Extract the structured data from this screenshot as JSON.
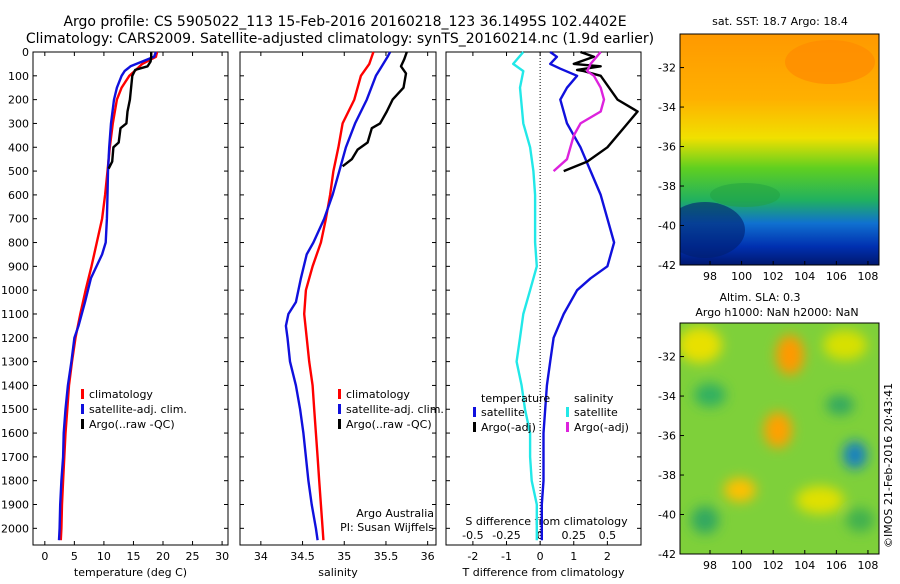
{
  "header": {
    "line1": "Argo profile: CS 5905022_113 15-Feb-2016 20160218_123 36.1495S 102.4402E",
    "line2": "Climatology: CARS2009. Satellite-adjusted climatology: synTS_20160214.nc (1.9d earlier)"
  },
  "colors": {
    "climatology": "#ff0000",
    "satellite": "#1010dd",
    "argo": "#000000",
    "satellite_salinity": "#22e8e8",
    "argo_salinity": "#dd22dd"
  },
  "watermark": "©IMOS 21-Feb-2016 20:43:41",
  "chart_data": [
    {
      "id": "temperature",
      "type": "line",
      "xlabel": "temperature (deg C)",
      "xlim": [
        -2,
        31
      ],
      "xticks": [
        0,
        5,
        10,
        15,
        20,
        25,
        30
      ],
      "ylim": [
        2070,
        0
      ],
      "yticks": [
        0,
        100,
        200,
        300,
        400,
        500,
        600,
        700,
        800,
        900,
        1000,
        1100,
        1200,
        1300,
        1400,
        1500,
        1600,
        1700,
        1800,
        1900,
        2000
      ],
      "legend": [
        "climatology",
        "satellite-adj. clim.",
        "Argo(..raw -QC)"
      ],
      "series": [
        {
          "name": "climatology",
          "color": "#ff0000",
          "points": [
            [
              19,
              0
            ],
            [
              18.8,
              20
            ],
            [
              16.5,
              50
            ],
            [
              15.2,
              80
            ],
            [
              14.3,
              100
            ],
            [
              13,
              150
            ],
            [
              12.2,
              200
            ],
            [
              11.5,
              300
            ],
            [
              11,
              400
            ],
            [
              10.6,
              500
            ],
            [
              10.2,
              600
            ],
            [
              9.7,
              700
            ],
            [
              8.8,
              800
            ],
            [
              7.9,
              900
            ],
            [
              6.9,
              1000
            ],
            [
              6,
              1100
            ],
            [
              5.2,
              1200
            ],
            [
              4.6,
              1300
            ],
            [
              4.1,
              1400
            ],
            [
              3.8,
              1500
            ],
            [
              3.5,
              1600
            ],
            [
              3.3,
              1700
            ],
            [
              3.1,
              1800
            ],
            [
              2.9,
              1900
            ],
            [
              2.8,
              2000
            ],
            [
              2.7,
              2050
            ]
          ]
        },
        {
          "name": "satellite-adj. clim.",
          "color": "#1010dd",
          "points": [
            [
              18.8,
              0
            ],
            [
              18.5,
              20
            ],
            [
              14.5,
              60
            ],
            [
              13.5,
              80
            ],
            [
              13,
              100
            ],
            [
              12.2,
              150
            ],
            [
              11.7,
              200
            ],
            [
              11.2,
              300
            ],
            [
              10.9,
              400
            ],
            [
              10.7,
              500
            ],
            [
              10.6,
              600
            ],
            [
              10.5,
              700
            ],
            [
              10.3,
              800
            ],
            [
              9.7,
              850
            ],
            [
              7.8,
              950
            ],
            [
              6.8,
              1050
            ],
            [
              5.7,
              1150
            ],
            [
              5,
              1200
            ],
            [
              4.5,
              1300
            ],
            [
              3.9,
              1400
            ],
            [
              3.5,
              1500
            ],
            [
              3.2,
              1600
            ],
            [
              3.1,
              1700
            ],
            [
              2.8,
              1800
            ],
            [
              2.6,
              1900
            ],
            [
              2.5,
              2000
            ],
            [
              2.4,
              2050
            ]
          ]
        },
        {
          "name": "Argo(..raw -QC)",
          "color": "#000000",
          "points": [
            [
              18,
              0
            ],
            [
              18,
              20
            ],
            [
              17.9,
              40
            ],
            [
              17.4,
              60
            ],
            [
              15.3,
              75
            ],
            [
              14.8,
              100
            ],
            [
              14.4,
              200
            ],
            [
              14,
              250
            ],
            [
              13.8,
              300
            ],
            [
              12.8,
              320
            ],
            [
              12.5,
              380
            ],
            [
              11.6,
              400
            ],
            [
              11.4,
              460
            ],
            [
              10.8,
              490
            ]
          ]
        }
      ]
    },
    {
      "id": "salinity",
      "type": "line",
      "xlabel": "salinity",
      "xlim": [
        33.75,
        36.1
      ],
      "xticks": [
        34,
        34.5,
        35,
        35.5,
        36
      ],
      "ylim": [
        2070,
        0
      ],
      "legend": [
        "climatology",
        "satellite-adj. clim.",
        "Argo(..raw -QC)"
      ],
      "annotations": [
        "Argo Australia",
        "PI: Susan Wijffels"
      ],
      "series": [
        {
          "name": "climatology",
          "color": "#ff0000",
          "points": [
            [
              35.35,
              0
            ],
            [
              35.3,
              50
            ],
            [
              35.2,
              100
            ],
            [
              35.12,
              200
            ],
            [
              34.98,
              300
            ],
            [
              34.93,
              400
            ],
            [
              34.87,
              500
            ],
            [
              34.83,
              600
            ],
            [
              34.78,
              700
            ],
            [
              34.72,
              800
            ],
            [
              34.62,
              900
            ],
            [
              34.54,
              1000
            ],
            [
              34.52,
              1100
            ],
            [
              34.55,
              1200
            ],
            [
              34.58,
              1300
            ],
            [
              34.62,
              1400
            ],
            [
              34.64,
              1500
            ],
            [
              34.66,
              1600
            ],
            [
              34.68,
              1700
            ],
            [
              34.7,
              1800
            ],
            [
              34.72,
              1900
            ],
            [
              34.74,
              2000
            ],
            [
              34.75,
              2050
            ]
          ]
        },
        {
          "name": "satellite-adj. clim.",
          "color": "#1010dd",
          "points": [
            [
              35.55,
              0
            ],
            [
              35.52,
              20
            ],
            [
              35.45,
              60
            ],
            [
              35.38,
              100
            ],
            [
              35.27,
              200
            ],
            [
              35.13,
              300
            ],
            [
              35.02,
              400
            ],
            [
              34.94,
              500
            ],
            [
              34.86,
              600
            ],
            [
              34.76,
              700
            ],
            [
              34.63,
              800
            ],
            [
              34.55,
              850
            ],
            [
              34.48,
              950
            ],
            [
              34.42,
              1050
            ],
            [
              34.33,
              1100
            ],
            [
              34.3,
              1150
            ],
            [
              34.32,
              1200
            ],
            [
              34.35,
              1300
            ],
            [
              34.42,
              1400
            ],
            [
              34.47,
              1500
            ],
            [
              34.51,
              1600
            ],
            [
              34.54,
              1700
            ],
            [
              34.57,
              1800
            ],
            [
              34.61,
              1900
            ],
            [
              34.66,
              2000
            ],
            [
              34.68,
              2050
            ]
          ]
        },
        {
          "name": "Argo(..raw -QC)",
          "color": "#000000",
          "points": [
            [
              35.75,
              0
            ],
            [
              35.72,
              30
            ],
            [
              35.68,
              60
            ],
            [
              35.74,
              90
            ],
            [
              35.71,
              150
            ],
            [
              35.58,
              200
            ],
            [
              35.51,
              250
            ],
            [
              35.43,
              300
            ],
            [
              35.33,
              320
            ],
            [
              35.28,
              380
            ],
            [
              35.16,
              410
            ],
            [
              35.09,
              450
            ],
            [
              34.98,
              480
            ]
          ]
        }
      ]
    },
    {
      "id": "difference",
      "type": "line",
      "xlabel": "T difference from climatology",
      "top_label": "S difference from climatology",
      "xlim": [
        -2.8,
        3
      ],
      "xticks": [
        -2,
        -1,
        0,
        1,
        2
      ],
      "top_ticks": [
        {
          "at": -2,
          "label": "-0.5"
        },
        {
          "at": -1,
          "label": "-0.25"
        },
        {
          "at": 0,
          "label": "0"
        },
        {
          "at": 1,
          "label": "0.25"
        },
        {
          "at": 2,
          "label": "0.5"
        }
      ],
      "ylim": [
        2070,
        0
      ],
      "legend_groups": [
        {
          "title": "temperature",
          "items": [
            "satellite",
            "Argo(-adj)"
          ]
        },
        {
          "title": "salinity",
          "items": [
            "satellite",
            "Argo(-adj)"
          ]
        }
      ],
      "series": [
        {
          "name": "temperature satellite",
          "color": "#1010dd",
          "points": [
            [
              0.3,
              0
            ],
            [
              0.5,
              20
            ],
            [
              0.3,
              50
            ],
            [
              0.6,
              70
            ],
            [
              1.1,
              100
            ],
            [
              0.8,
              150
            ],
            [
              0.6,
              200
            ],
            [
              0.8,
              300
            ],
            [
              1.2,
              400
            ],
            [
              1.5,
              500
            ],
            [
              1.8,
              600
            ],
            [
              2,
              700
            ],
            [
              2.2,
              800
            ],
            [
              2,
              900
            ],
            [
              1.5,
              950
            ],
            [
              1.1,
              1000
            ],
            [
              0.7,
              1100
            ],
            [
              0.4,
              1200
            ],
            [
              0.3,
              1300
            ],
            [
              0.2,
              1400
            ],
            [
              0.15,
              1500
            ],
            [
              0.1,
              1600
            ],
            [
              0.1,
              1700
            ],
            [
              0.1,
              1800
            ],
            [
              0.05,
              1900
            ],
            [
              0.05,
              2000
            ],
            [
              0.05,
              2050
            ]
          ]
        },
        {
          "name": "temperature Argo(-adj)",
          "color": "#000000",
          "points": [
            [
              1.2,
              0
            ],
            [
              1.6,
              20
            ],
            [
              1,
              50
            ],
            [
              1.8,
              60
            ],
            [
              1.1,
              75
            ],
            [
              1.3,
              80
            ],
            [
              1.8,
              100
            ],
            [
              2.3,
              200
            ],
            [
              2.9,
              250
            ],
            [
              2.6,
              300
            ],
            [
              2,
              400
            ],
            [
              1.4,
              460
            ],
            [
              0.7,
              500
            ]
          ]
        },
        {
          "name": "salinity satellite",
          "color": "#22e8e8",
          "points": [
            [
              -0.5,
              0
            ],
            [
              -0.8,
              50
            ],
            [
              -0.5,
              80
            ],
            [
              -0.6,
              150
            ],
            [
              -0.5,
              300
            ],
            [
              -0.3,
              400
            ],
            [
              -0.2,
              500
            ],
            [
              -0.15,
              600
            ],
            [
              -0.15,
              700
            ],
            [
              -0.15,
              800
            ],
            [
              -0.1,
              900
            ],
            [
              -0.3,
              1000
            ],
            [
              -0.5,
              1100
            ],
            [
              -0.6,
              1200
            ],
            [
              -0.7,
              1300
            ],
            [
              -0.55,
              1400
            ],
            [
              -0.45,
              1500
            ],
            [
              -0.3,
              1600
            ],
            [
              -0.3,
              1700
            ],
            [
              -0.25,
              1800
            ],
            [
              -0.1,
              1900
            ],
            [
              -0.1,
              2000
            ],
            [
              -0.1,
              2050
            ]
          ]
        },
        {
          "name": "salinity Argo(-adj)",
          "color": "#dd22dd",
          "points": [
            [
              1.8,
              0
            ],
            [
              1.5,
              50
            ],
            [
              1.4,
              80
            ],
            [
              1.6,
              100
            ],
            [
              1.8,
              150
            ],
            [
              1.9,
              200
            ],
            [
              1.8,
              250
            ],
            [
              1.2,
              300
            ],
            [
              1,
              350
            ],
            [
              0.9,
              400
            ],
            [
              0.8,
              450
            ],
            [
              0.4,
              500
            ]
          ]
        }
      ]
    },
    {
      "id": "sst-map",
      "type": "heatmap",
      "title": "sat. SST: 18.7  Argo: 18.4",
      "xticks": [
        98,
        100,
        102,
        104,
        106,
        108
      ],
      "yticks": [
        -32,
        -34,
        -36,
        -38,
        -40,
        -42
      ],
      "xlim": [
        96.1,
        108.7
      ],
      "ylim": [
        -42,
        -30.3
      ]
    },
    {
      "id": "sla-map",
      "type": "heatmap",
      "title_line1": "Altim. SLA: 0.3",
      "title_line2": "Argo h1000: NaN  h2000: NaN",
      "xticks": [
        98,
        100,
        102,
        104,
        106,
        108
      ],
      "yticks": [
        -32,
        -34,
        -36,
        -38,
        -40,
        -42
      ],
      "xlim": [
        96.1,
        108.7
      ],
      "ylim": [
        -42,
        -30.3
      ]
    }
  ]
}
